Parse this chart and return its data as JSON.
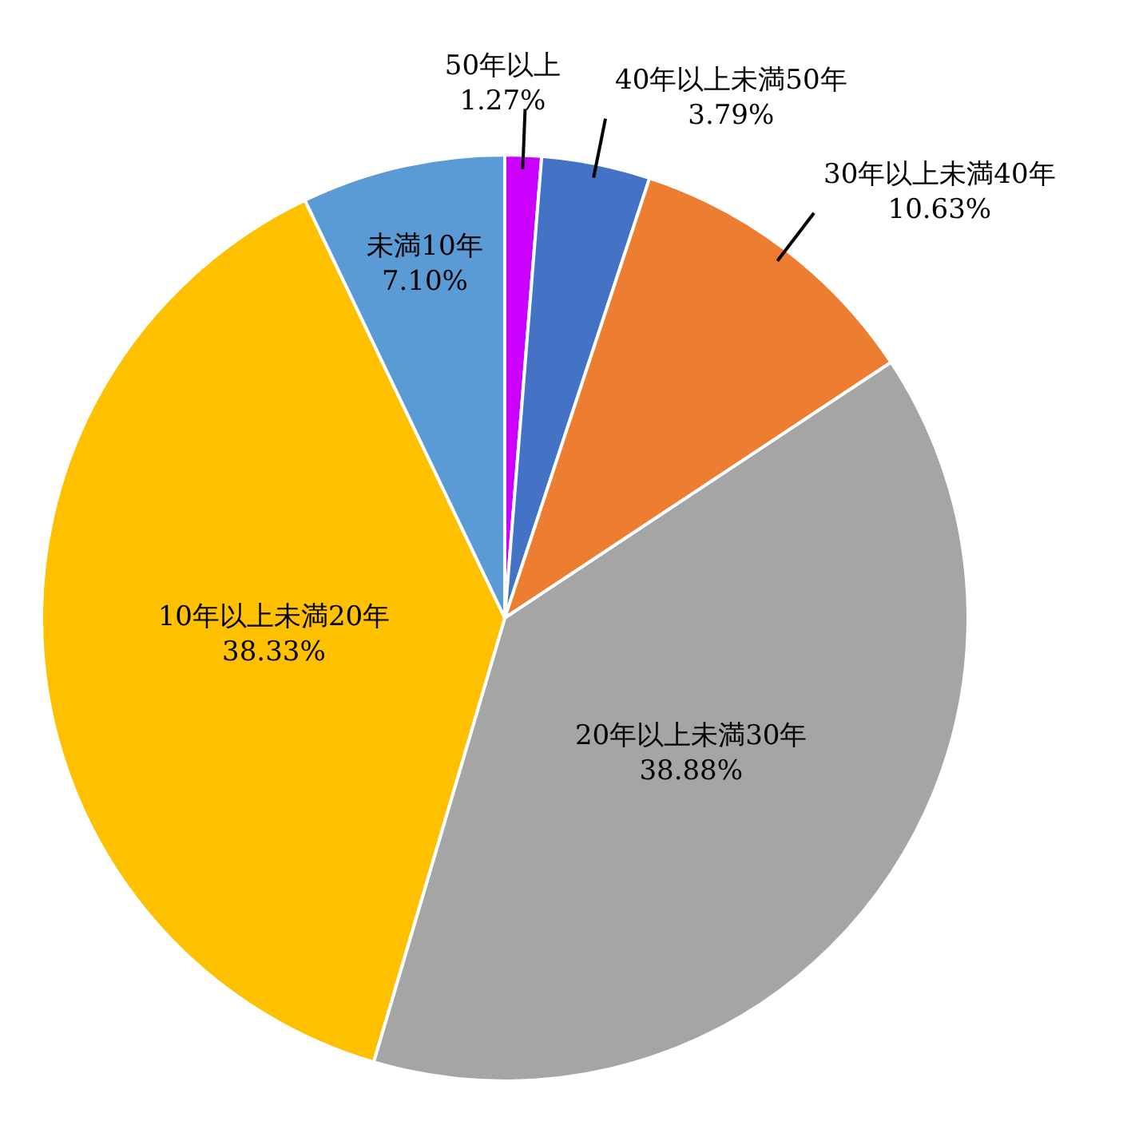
{
  "chart_data": {
    "type": "pie",
    "categories": [
      "50年以上",
      "40年以上未満50年",
      "30年以上未満40年",
      "20年以上未満30年",
      "10年以上未満20年",
      "未満10年"
    ],
    "values": [
      1.27,
      3.79,
      10.63,
      38.88,
      38.33,
      7.1
    ],
    "value_labels": [
      "1.27%",
      "3.79%",
      "10.63%",
      "38.88%",
      "38.33%",
      "7.10%"
    ],
    "colors": [
      "#cc00ff",
      "#4472c4",
      "#ed7d31",
      "#a5a5a5",
      "#ffc000",
      "#5b9bd5"
    ]
  }
}
